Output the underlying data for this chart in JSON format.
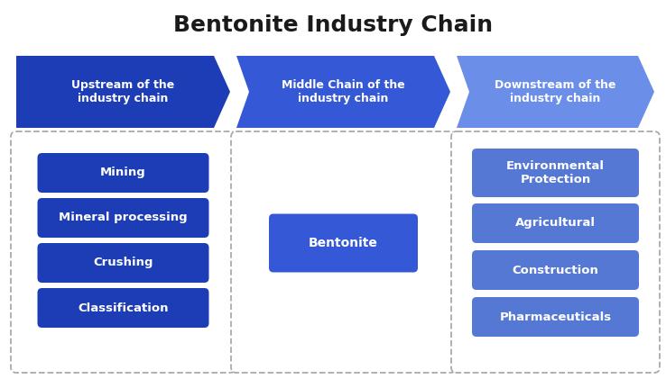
{
  "title": "Bentonite Industry Chain",
  "title_fontsize": 18,
  "background_color": "#ffffff",
  "arrow_configs": [
    {
      "label": "Upstream of the\nindustry chain",
      "color": "#1c3db5"
    },
    {
      "label": "Middle Chain of the\nindustry chain",
      "color": "#3558d6"
    },
    {
      "label": "Downstream of the\nindustry chain",
      "color": "#6b8ee8"
    }
  ],
  "left_items": [
    "Mining",
    "Mineral processing",
    "Crushing",
    "Classification"
  ],
  "left_color": "#1c3db5",
  "middle_item": "Bentonite",
  "middle_color": "#3558d6",
  "right_items": [
    "Environmental\nProtection",
    "Agricultural",
    "Construction",
    "Pharmaceuticals"
  ],
  "right_color": "#5578d4",
  "text_color": "#ffffff",
  "box_edge_color": "#aaaaaa",
  "title_color": "#1a1a1a"
}
